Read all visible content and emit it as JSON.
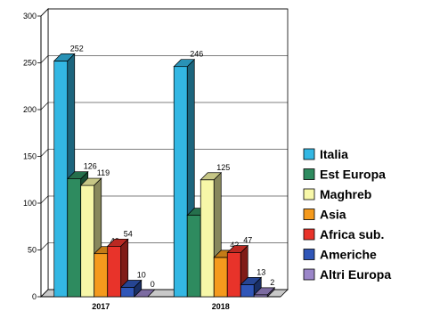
{
  "chart_data": {
    "type": "bar",
    "style": "3d-clustered",
    "categories": [
      "2017",
      "2018"
    ],
    "ylim": [
      0,
      300
    ],
    "yticks": [
      0,
      50,
      100,
      150,
      200,
      250,
      300
    ],
    "grid": true,
    "legend_position": "right",
    "series": [
      {
        "name": "Italia",
        "values": [
          252,
          246
        ],
        "color": "#33b7e3"
      },
      {
        "name": "Est Europa",
        "values": [
          126,
          87
        ],
        "color": "#2e8b5f"
      },
      {
        "name": "Maghreb",
        "values": [
          119,
          125
        ],
        "color": "#f7f7a8"
      },
      {
        "name": "Asia",
        "values": [
          46,
          42
        ],
        "color": "#f59a1d"
      },
      {
        "name": "Africa sub.",
        "values": [
          54,
          47
        ],
        "color": "#e8332a"
      },
      {
        "name": "Americhe",
        "values": [
          10,
          13
        ],
        "color": "#3056b8"
      },
      {
        "name": "Altri Europa",
        "values": [
          0,
          2
        ],
        "color": "#9b86c9"
      }
    ]
  }
}
